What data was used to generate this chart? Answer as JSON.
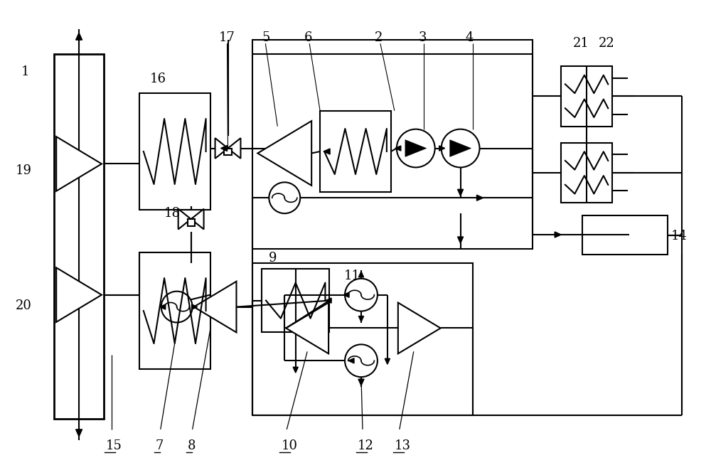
{
  "bg": "#ffffff",
  "lc": "#000000",
  "lw": 1.5,
  "fw": 10.0,
  "fh": 6.68
}
